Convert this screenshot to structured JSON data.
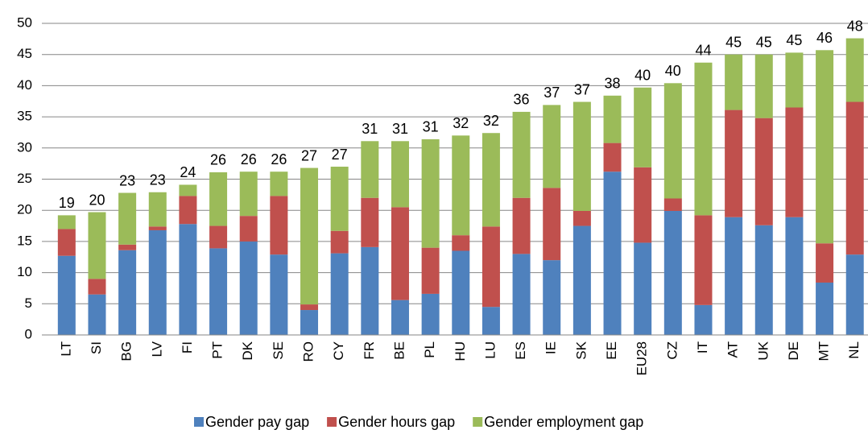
{
  "chart_data": {
    "type": "stacked-bar",
    "categories": [
      "LT",
      "SI",
      "BG",
      "LV",
      "FI",
      "PT",
      "DK",
      "SE",
      "RO",
      "CY",
      "FR",
      "BE",
      "PL",
      "HU",
      "LU",
      "ES",
      "IE",
      "SK",
      "EE",
      "EU28",
      "CZ",
      "IT",
      "AT",
      "UK",
      "DE",
      "MT",
      "NL"
    ],
    "series": [
      {
        "name": "Gender pay gap",
        "color": "#4f81bd",
        "values": [
          12.7,
          6.5,
          13.6,
          16.8,
          17.8,
          13.9,
          15.0,
          12.9,
          4.0,
          13.1,
          14.1,
          5.6,
          6.6,
          13.5,
          4.5,
          13.0,
          12.0,
          17.5,
          26.2,
          14.8,
          19.9,
          4.8,
          18.9,
          17.6,
          18.9,
          8.4,
          12.9
        ]
      },
      {
        "name": "Gender hours gap",
        "color": "#c0504d",
        "values": [
          4.3,
          2.5,
          0.9,
          0.6,
          4.5,
          3.6,
          4.1,
          9.4,
          0.9,
          3.6,
          7.9,
          14.9,
          7.4,
          2.5,
          12.9,
          9.0,
          11.6,
          2.4,
          4.6,
          12.1,
          2.0,
          14.4,
          17.2,
          17.2,
          17.6,
          6.3,
          24.5
        ]
      },
      {
        "name": "Gender employment gap",
        "color": "#9bbb59",
        "values": [
          2.2,
          10.7,
          8.3,
          5.5,
          1.8,
          8.6,
          7.1,
          3.9,
          21.9,
          10.3,
          9.1,
          10.6,
          17.4,
          16.0,
          15.0,
          13.8,
          13.3,
          17.5,
          7.6,
          12.8,
          18.5,
          24.5,
          8.9,
          10.2,
          8.8,
          31.0,
          10.2
        ]
      }
    ],
    "totals": [
      19,
      20,
      23,
      23,
      24,
      26,
      26,
      26,
      27,
      27,
      31,
      31,
      31,
      32,
      32,
      36,
      37,
      37,
      38,
      40,
      40,
      44,
      45,
      45,
      45,
      46,
      48
    ],
    "ylim": [
      0,
      50
    ],
    "yticks": [
      0,
      5,
      10,
      15,
      20,
      25,
      30,
      35,
      40,
      45,
      50
    ],
    "grid": true,
    "legend": "bottom"
  }
}
